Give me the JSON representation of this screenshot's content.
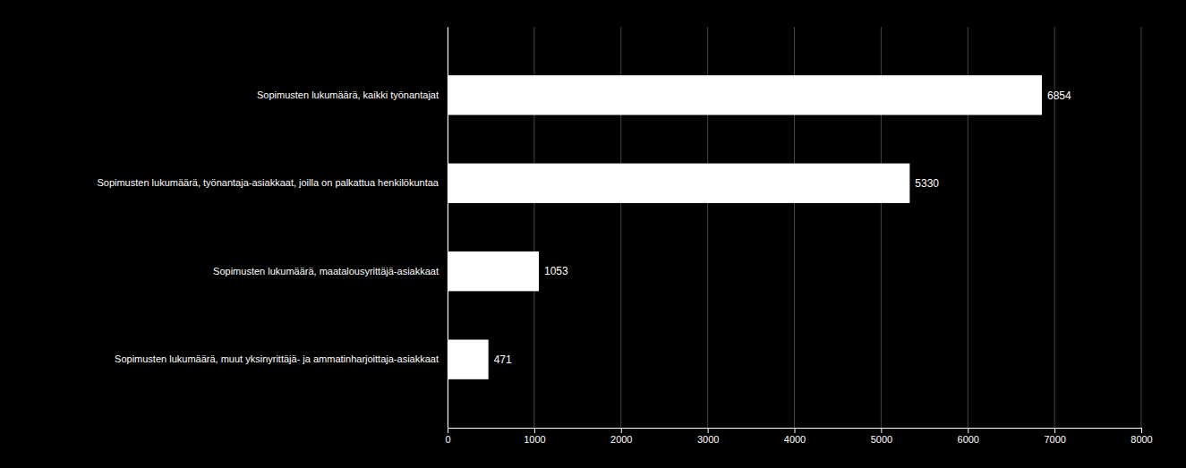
{
  "chart_data": {
    "type": "bar",
    "orientation": "horizontal",
    "categories": [
      "Sopimusten lukumäärä, muut yksinyrittäjä- ja ammatinharjoittaja-asiakkaat",
      "Sopimusten lukumäärä, maatalousyrittäjä-asiakkaat",
      "Sopimusten lukumäärä, työnantaja-asiakkaat, joilla on palkattua henkilökuntaa",
      "Sopimusten lukumäärä, kaikki työnantajat"
    ],
    "values": [
      471,
      1053,
      5330,
      6854
    ],
    "color": "#ffffff",
    "xlim": [
      0,
      8000
    ],
    "xticks": [
      0,
      1000,
      2000,
      3000,
      4000,
      5000,
      6000,
      7000,
      8000
    ],
    "grid": true,
    "data_labels": true
  }
}
